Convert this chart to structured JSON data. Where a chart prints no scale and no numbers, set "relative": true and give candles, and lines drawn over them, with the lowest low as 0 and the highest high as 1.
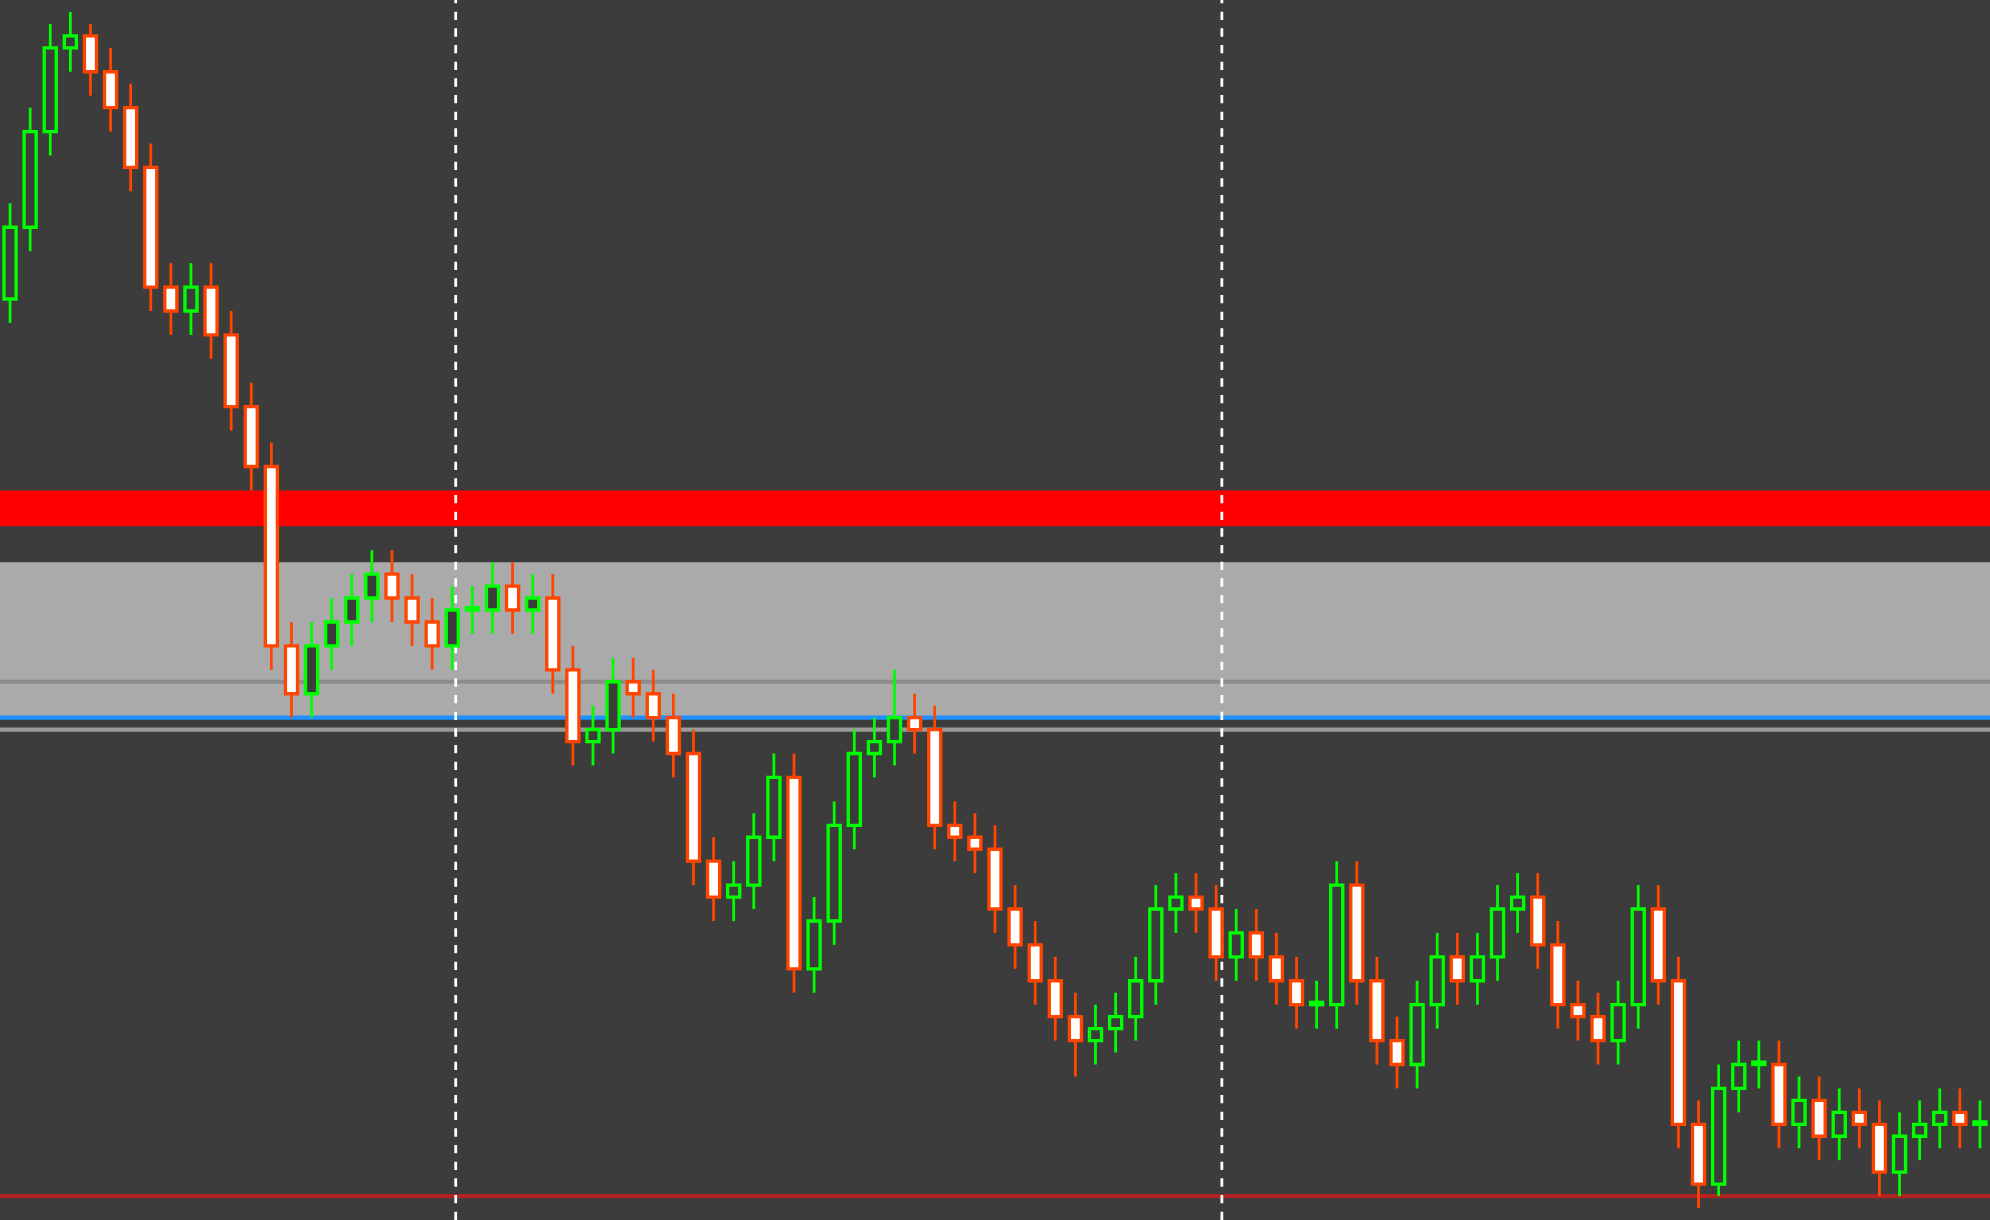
{
  "chart_data": {
    "type": "candlestick",
    "relative": true,
    "categories": [
      null,
      null,
      null,
      null,
      null,
      null,
      null,
      null,
      null,
      null,
      null,
      null,
      null,
      null,
      null,
      null,
      null,
      null,
      null,
      null,
      null,
      null,
      null,
      null,
      null,
      null,
      null,
      null,
      null,
      null,
      null,
      null,
      null,
      null,
      null,
      null,
      null,
      null,
      null,
      null,
      null,
      null,
      null,
      null,
      null,
      null,
      null,
      null,
      null,
      null,
      null,
      null,
      null,
      null,
      null,
      null,
      null,
      null,
      null,
      null,
      null,
      null,
      null,
      null,
      null,
      null,
      null,
      null,
      null,
      null,
      null,
      null,
      null,
      null,
      null,
      null,
      null,
      null,
      null,
      null,
      null,
      null,
      null,
      null,
      null,
      null,
      null,
      null,
      null,
      null,
      null,
      null,
      null,
      null,
      null,
      null,
      null,
      null,
      null
    ],
    "ohlc": [
      [
        0.76,
        0.84,
        0.74,
        0.82
      ],
      [
        0.82,
        0.92,
        0.8,
        0.9
      ],
      [
        0.9,
        0.99,
        0.88,
        0.97
      ],
      [
        0.97,
        1.0,
        0.95,
        0.98
      ],
      [
        0.98,
        0.99,
        0.93,
        0.95
      ],
      [
        0.95,
        0.97,
        0.9,
        0.92
      ],
      [
        0.92,
        0.94,
        0.85,
        0.87
      ],
      [
        0.87,
        0.89,
        0.75,
        0.77
      ],
      [
        0.77,
        0.79,
        0.73,
        0.75
      ],
      [
        0.75,
        0.79,
        0.73,
        0.77
      ],
      [
        0.77,
        0.79,
        0.71,
        0.73
      ],
      [
        0.73,
        0.75,
        0.65,
        0.67
      ],
      [
        0.67,
        0.69,
        0.6,
        0.62
      ],
      [
        0.62,
        0.64,
        0.45,
        0.47
      ],
      [
        0.47,
        0.49,
        0.41,
        0.43
      ],
      [
        0.43,
        0.49,
        0.41,
        0.47
      ],
      [
        0.47,
        0.51,
        0.45,
        0.49
      ],
      [
        0.49,
        0.53,
        0.47,
        0.51
      ],
      [
        0.51,
        0.55,
        0.49,
        0.53
      ],
      [
        0.53,
        0.55,
        0.49,
        0.51
      ],
      [
        0.51,
        0.53,
        0.47,
        0.49
      ],
      [
        0.49,
        0.51,
        0.45,
        0.47
      ],
      [
        0.47,
        0.52,
        0.45,
        0.5
      ],
      [
        0.5,
        0.52,
        0.48,
        0.5
      ],
      [
        0.5,
        0.54,
        0.48,
        0.52
      ],
      [
        0.52,
        0.54,
        0.48,
        0.5
      ],
      [
        0.5,
        0.53,
        0.48,
        0.51
      ],
      [
        0.51,
        0.53,
        0.43,
        0.45
      ],
      [
        0.45,
        0.47,
        0.37,
        0.39
      ],
      [
        0.39,
        0.42,
        0.37,
        0.4
      ],
      [
        0.4,
        0.46,
        0.38,
        0.44
      ],
      [
        0.44,
        0.46,
        0.41,
        0.43
      ],
      [
        0.43,
        0.45,
        0.39,
        0.41
      ],
      [
        0.41,
        0.43,
        0.36,
        0.38
      ],
      [
        0.38,
        0.4,
        0.27,
        0.29
      ],
      [
        0.29,
        0.31,
        0.24,
        0.26
      ],
      [
        0.26,
        0.29,
        0.24,
        0.27
      ],
      [
        0.27,
        0.33,
        0.25,
        0.31
      ],
      [
        0.31,
        0.38,
        0.29,
        0.36
      ],
      [
        0.36,
        0.38,
        0.18,
        0.2
      ],
      [
        0.2,
        0.26,
        0.18,
        0.24
      ],
      [
        0.24,
        0.34,
        0.22,
        0.32
      ],
      [
        0.32,
        0.4,
        0.3,
        0.38
      ],
      [
        0.38,
        0.41,
        0.36,
        0.39
      ],
      [
        0.39,
        0.45,
        0.37,
        0.41
      ],
      [
        0.41,
        0.43,
        0.38,
        0.4
      ],
      [
        0.4,
        0.42,
        0.3,
        0.32
      ],
      [
        0.32,
        0.34,
        0.29,
        0.31
      ],
      [
        0.31,
        0.33,
        0.28,
        0.3
      ],
      [
        0.3,
        0.32,
        0.23,
        0.25
      ],
      [
        0.25,
        0.27,
        0.2,
        0.22
      ],
      [
        0.22,
        0.24,
        0.17,
        0.19
      ],
      [
        0.19,
        0.21,
        0.14,
        0.16
      ],
      [
        0.16,
        0.18,
        0.11,
        0.14
      ],
      [
        0.14,
        0.17,
        0.12,
        0.15
      ],
      [
        0.15,
        0.18,
        0.13,
        0.16
      ],
      [
        0.16,
        0.21,
        0.14,
        0.19
      ],
      [
        0.19,
        0.27,
        0.17,
        0.25
      ],
      [
        0.25,
        0.28,
        0.23,
        0.26
      ],
      [
        0.26,
        0.28,
        0.23,
        0.25
      ],
      [
        0.25,
        0.27,
        0.19,
        0.21
      ],
      [
        0.21,
        0.25,
        0.19,
        0.23
      ],
      [
        0.23,
        0.25,
        0.19,
        0.21
      ],
      [
        0.21,
        0.23,
        0.17,
        0.19
      ],
      [
        0.19,
        0.21,
        0.15,
        0.17
      ],
      [
        0.17,
        0.19,
        0.15,
        0.17
      ],
      [
        0.17,
        0.29,
        0.15,
        0.27
      ],
      [
        0.27,
        0.29,
        0.17,
        0.19
      ],
      [
        0.19,
        0.21,
        0.12,
        0.14
      ],
      [
        0.14,
        0.16,
        0.1,
        0.12
      ],
      [
        0.12,
        0.19,
        0.1,
        0.17
      ],
      [
        0.17,
        0.23,
        0.15,
        0.21
      ],
      [
        0.21,
        0.23,
        0.17,
        0.19
      ],
      [
        0.19,
        0.23,
        0.17,
        0.21
      ],
      [
        0.21,
        0.27,
        0.19,
        0.25
      ],
      [
        0.25,
        0.28,
        0.23,
        0.26
      ],
      [
        0.26,
        0.28,
        0.2,
        0.22
      ],
      [
        0.22,
        0.24,
        0.15,
        0.17
      ],
      [
        0.17,
        0.19,
        0.14,
        0.16
      ],
      [
        0.16,
        0.18,
        0.12,
        0.14
      ],
      [
        0.14,
        0.19,
        0.12,
        0.17
      ],
      [
        0.17,
        0.27,
        0.15,
        0.25
      ],
      [
        0.25,
        0.27,
        0.17,
        0.19
      ],
      [
        0.19,
        0.21,
        0.05,
        0.07
      ],
      [
        0.07,
        0.09,
        0.0,
        0.02
      ],
      [
        0.02,
        0.12,
        0.01,
        0.1
      ],
      [
        0.1,
        0.14,
        0.08,
        0.12
      ],
      [
        0.12,
        0.14,
        0.1,
        0.12
      ],
      [
        0.12,
        0.14,
        0.05,
        0.07
      ],
      [
        0.07,
        0.11,
        0.05,
        0.09
      ],
      [
        0.09,
        0.11,
        0.04,
        0.06
      ],
      [
        0.06,
        0.1,
        0.04,
        0.08
      ],
      [
        0.08,
        0.1,
        0.05,
        0.07
      ],
      [
        0.07,
        0.09,
        0.01,
        0.03
      ],
      [
        0.03,
        0.08,
        0.01,
        0.06
      ],
      [
        0.06,
        0.09,
        0.04,
        0.07
      ],
      [
        0.07,
        0.1,
        0.05,
        0.08
      ],
      [
        0.08,
        0.1,
        0.05,
        0.07
      ],
      [
        0.07,
        0.09,
        0.05,
        0.07
      ]
    ],
    "bands": [
      {
        "axis": "y",
        "from": 0.57,
        "to": 0.6,
        "color": "#ff0000"
      },
      {
        "axis": "y",
        "from": 0.41,
        "to": 0.54,
        "color": "#aaaaaa"
      }
    ],
    "ref_lines": [
      {
        "axis": "y",
        "value": 0.44,
        "color": "#8c8c8c"
      },
      {
        "axis": "y",
        "value": 0.4,
        "color": "#9a9a9a"
      },
      {
        "axis": "y",
        "value": 0.41,
        "color": "#1e90ff"
      },
      {
        "axis": "y",
        "value": 0.01,
        "color": "#b22222"
      }
    ],
    "grid": false
  }
}
